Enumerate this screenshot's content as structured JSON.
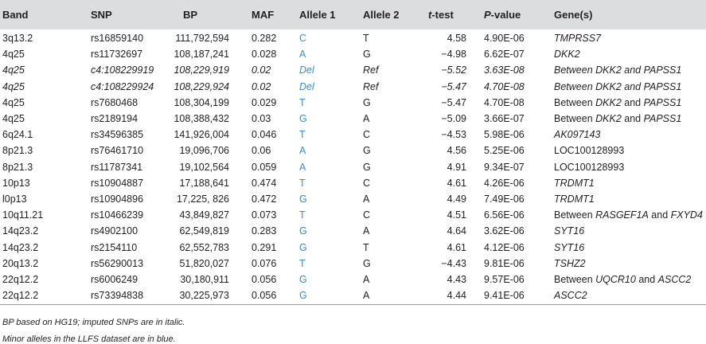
{
  "headers": {
    "band": "Band",
    "snp": "SNP",
    "bp": "BP",
    "maf": "MAF",
    "allele1": "Allele 1",
    "allele2": "Allele 2",
    "ttest_i": "t",
    "ttest_rest": "-test",
    "pval_i": "P",
    "pval_rest": "-value",
    "genes": "Gene(s)"
  },
  "rows": [
    {
      "band": "3q13.2",
      "snp": "rs16859140",
      "bp": "111,792,594",
      "maf": "0.282",
      "a1": "C",
      "a2": "T",
      "t": "4.58",
      "p": "4.90E-06",
      "g_pre": "",
      "g1": "TMPRSS7",
      "g_mid": "",
      "g2": "",
      "imputed": false,
      "gene_italic": true
    },
    {
      "band": "4q25",
      "snp": "rs11732697",
      "bp": "108,187,241",
      "maf": "0.028",
      "a1": "A",
      "a2": "G",
      "t": "−4.98",
      "p": "6.62E-07",
      "g_pre": "",
      "g1": "DKK2",
      "g_mid": "",
      "g2": "",
      "imputed": false,
      "gene_italic": true
    },
    {
      "band": "4q25",
      "snp": "c4:108229919",
      "bp": "108,229,919",
      "maf": "0.02",
      "a1": "Del",
      "a2": "Ref",
      "t": "−5.52",
      "p": "3.63E-08",
      "g_pre": "Between ",
      "g1": "DKK2",
      "g_mid": " and ",
      "g2": "PAPSS1",
      "imputed": true,
      "gene_italic": true
    },
    {
      "band": "4q25",
      "snp": "c4:108229924",
      "bp": "108,229,924",
      "maf": "0.02",
      "a1": "Del",
      "a2": "Ref",
      "t": "−5.47",
      "p": "4.70E-08",
      "g_pre": "Between ",
      "g1": "DKK2",
      "g_mid": " and ",
      "g2": "PAPSS1",
      "imputed": true,
      "gene_italic": true
    },
    {
      "band": "4q25",
      "snp": "rs7680468",
      "bp": "108,304,199",
      "maf": "0.029",
      "a1": "T",
      "a2": "G",
      "t": "−5.47",
      "p": "4.70E-08",
      "g_pre": "Between ",
      "g1": "DKK2",
      "g_mid": " and ",
      "g2": "PAPSS1",
      "imputed": false,
      "gene_italic": true
    },
    {
      "band": "4q25",
      "snp": "rs2189194",
      "bp": "108,388,432",
      "maf": "0.03",
      "a1": "G",
      "a2": "A",
      "t": "−5.09",
      "p": "3.66E-07",
      "g_pre": "Between ",
      "g1": "DKK2",
      "g_mid": " and ",
      "g2": "PAPSS1",
      "imputed": false,
      "gene_italic": true
    },
    {
      "band": "6q24.1",
      "snp": "rs34596385",
      "bp": "141,926,004",
      "maf": "0.046",
      "a1": "T",
      "a2": "C",
      "t": "−4.53",
      "p": "5.98E-06",
      "g_pre": "",
      "g1": "AK097143",
      "g_mid": "",
      "g2": "",
      "imputed": false,
      "gene_italic": true
    },
    {
      "band": "8p21.3",
      "snp": "rs76461710",
      "bp": "19,096,706",
      "maf": "0.06",
      "a1": "A",
      "a2": "G",
      "t": "4.56",
      "p": "5.25E-06",
      "g_pre": "",
      "g1": "LOC100128993",
      "g_mid": "",
      "g2": "",
      "imputed": false,
      "gene_italic": false
    },
    {
      "band": "8p21.3",
      "snp": "rs11787341",
      "bp": "19,102,564",
      "maf": "0.059",
      "a1": "A",
      "a2": "G",
      "t": "4.91",
      "p": "9.34E-07",
      "g_pre": "",
      "g1": "LOC100128993",
      "g_mid": "",
      "g2": "",
      "imputed": false,
      "gene_italic": false
    },
    {
      "band": "10p13",
      "snp": "rs10904887",
      "bp": "17,188,641",
      "maf": "0.474",
      "a1": "T",
      "a2": "C",
      "t": "4.61",
      "p": "4.26E-06",
      "g_pre": "",
      "g1": "TRDMT1",
      "g_mid": "",
      "g2": "",
      "imputed": false,
      "gene_italic": true
    },
    {
      "band": "l0p13",
      "snp": "rs10904896",
      "bp": "17,225, 826",
      "maf": "0.472",
      "a1": "G",
      "a2": "A",
      "t": "4.49",
      "p": "7.49E-06",
      "g_pre": "",
      "g1": "TRDMT1",
      "g_mid": "",
      "g2": "",
      "imputed": false,
      "gene_italic": true
    },
    {
      "band": "10q11.21",
      "snp": "rs10466239",
      "bp": "43,849,827",
      "maf": "0.073",
      "a1": "T",
      "a2": "C",
      "t": "4.51",
      "p": "6.56E-06",
      "g_pre": "Between ",
      "g1": "RASGEF1A",
      "g_mid": " and ",
      "g2": "FXYD4",
      "imputed": false,
      "gene_italic": true
    },
    {
      "band": "14q23.2",
      "snp": "rs4902100",
      "bp": "62,549,819",
      "maf": "0.283",
      "a1": "G",
      "a2": "A",
      "t": "4.64",
      "p": "3.62E-06",
      "g_pre": "",
      "g1": "SYT16",
      "g_mid": "",
      "g2": "",
      "imputed": false,
      "gene_italic": true
    },
    {
      "band": "14q23.2",
      "snp": "rs2154110",
      "bp": "62,552,783",
      "maf": "0.291",
      "a1": "G",
      "a2": "T",
      "t": "4.61",
      "p": "4.12E-06",
      "g_pre": "",
      "g1": "SYT16",
      "g_mid": "",
      "g2": "",
      "imputed": false,
      "gene_italic": true
    },
    {
      "band": "20q13.2",
      "snp": "rs56290013",
      "bp": "51,820,027",
      "maf": "0.076",
      "a1": "T",
      "a2": "G",
      "t": "−4.43",
      "p": "9.81E-06",
      "g_pre": "",
      "g1": "TSHZ2",
      "g_mid": "",
      "g2": "",
      "imputed": false,
      "gene_italic": true
    },
    {
      "band": "22q12.2",
      "snp": "rs6006249",
      "bp": "30,180,911",
      "maf": "0.056",
      "a1": "G",
      "a2": "A",
      "t": "4.43",
      "p": "9.57E-06",
      "g_pre": "Between ",
      "g1": "UQCR10",
      "g_mid": " and ",
      "g2": "ASCC2",
      "imputed": false,
      "gene_italic": true
    },
    {
      "band": "22q12.2",
      "snp": "rs73394838",
      "bp": "30,225,973",
      "maf": "0.056",
      "a1": "G",
      "a2": "A",
      "t": "4.44",
      "p": "9.41E-06",
      "g_pre": "",
      "g1": "ASCC2",
      "g_mid": "",
      "g2": "",
      "imputed": false,
      "gene_italic": true
    }
  ],
  "footnotes": [
    "BP based on HG19; imputed SNPs are in italic.",
    "Minor alleles in the LLFS dataset are in blue."
  ],
  "colors": {
    "header_bg": "#dcdddf",
    "minor_allele": "#3b8ec9",
    "rule": "#9a9b9d"
  }
}
